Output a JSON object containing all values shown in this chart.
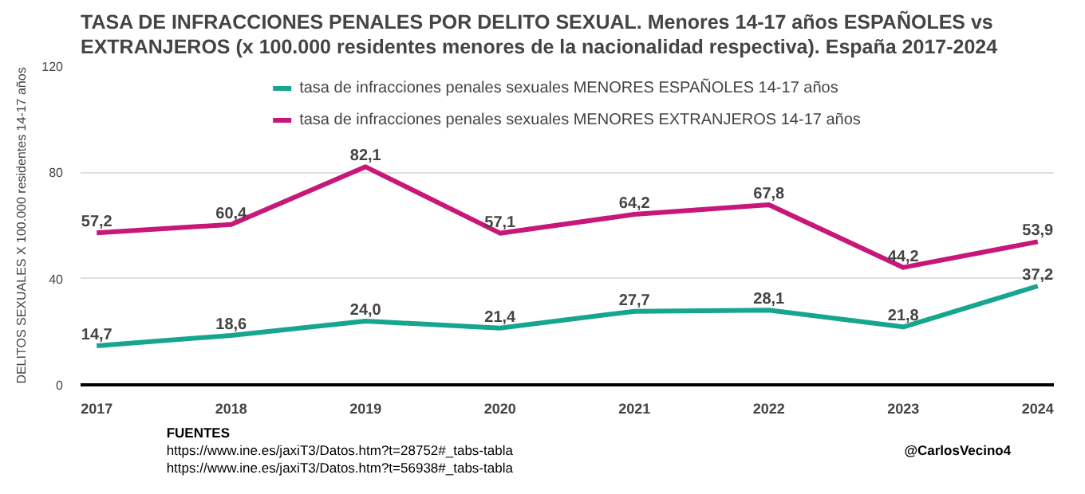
{
  "chart_data": {
    "type": "line",
    "title": "TASA DE INFRACCIONES PENALES POR DELITO SEXUAL. Menores 14-17 años ESPAÑOLES vs\nEXTRANJEROS (x 100.000 residentes menores de la nacionalidad respectiva). España 2017-2024",
    "ylabel": "DELITOS SEXUALES X 100.000 residentes 14-17 años",
    "categories": [
      "2017",
      "2018",
      "2019",
      "2020",
      "2021",
      "2022",
      "2023",
      "2024"
    ],
    "series": [
      {
        "name": "tasa de infracciones penales sexuales MENORES ESPAÑOLES 14-17 años",
        "color": "#16a58e",
        "values": [
          14.7,
          18.6,
          24.0,
          21.4,
          27.7,
          28.1,
          21.8,
          37.2
        ],
        "value_labels": [
          "14,7",
          "18,6",
          "24,0",
          "21,4",
          "27,7",
          "28,1",
          "21,8",
          "37,2"
        ]
      },
      {
        "name": "tasa de infracciones penales sexuales MENORES EXTRANJEROS 14-17 años",
        "color": "#c8177a",
        "values": [
          57.2,
          60.4,
          82.1,
          57.1,
          64.2,
          67.8,
          44.2,
          53.9
        ],
        "value_labels": [
          "57,2",
          "60,4",
          "82,1",
          "57,1",
          "64,2",
          "67,8",
          "44,2",
          "53,9"
        ]
      }
    ],
    "ylim": [
      0,
      120
    ],
    "yticks": [
      0,
      40,
      80,
      120
    ],
    "grid": "y",
    "legend": "top",
    "marker": "none",
    "line_style": "solid",
    "annotations": [
      "FUENTES",
      "https://www.ine.es/jaxiT3/Datos.htm?t=28752#_tabs-tabla",
      "https://www.ine.es/jaxiT3/Datos.htm?t=56938#_tabs-tabla",
      "@CarlosVecino4"
    ]
  }
}
